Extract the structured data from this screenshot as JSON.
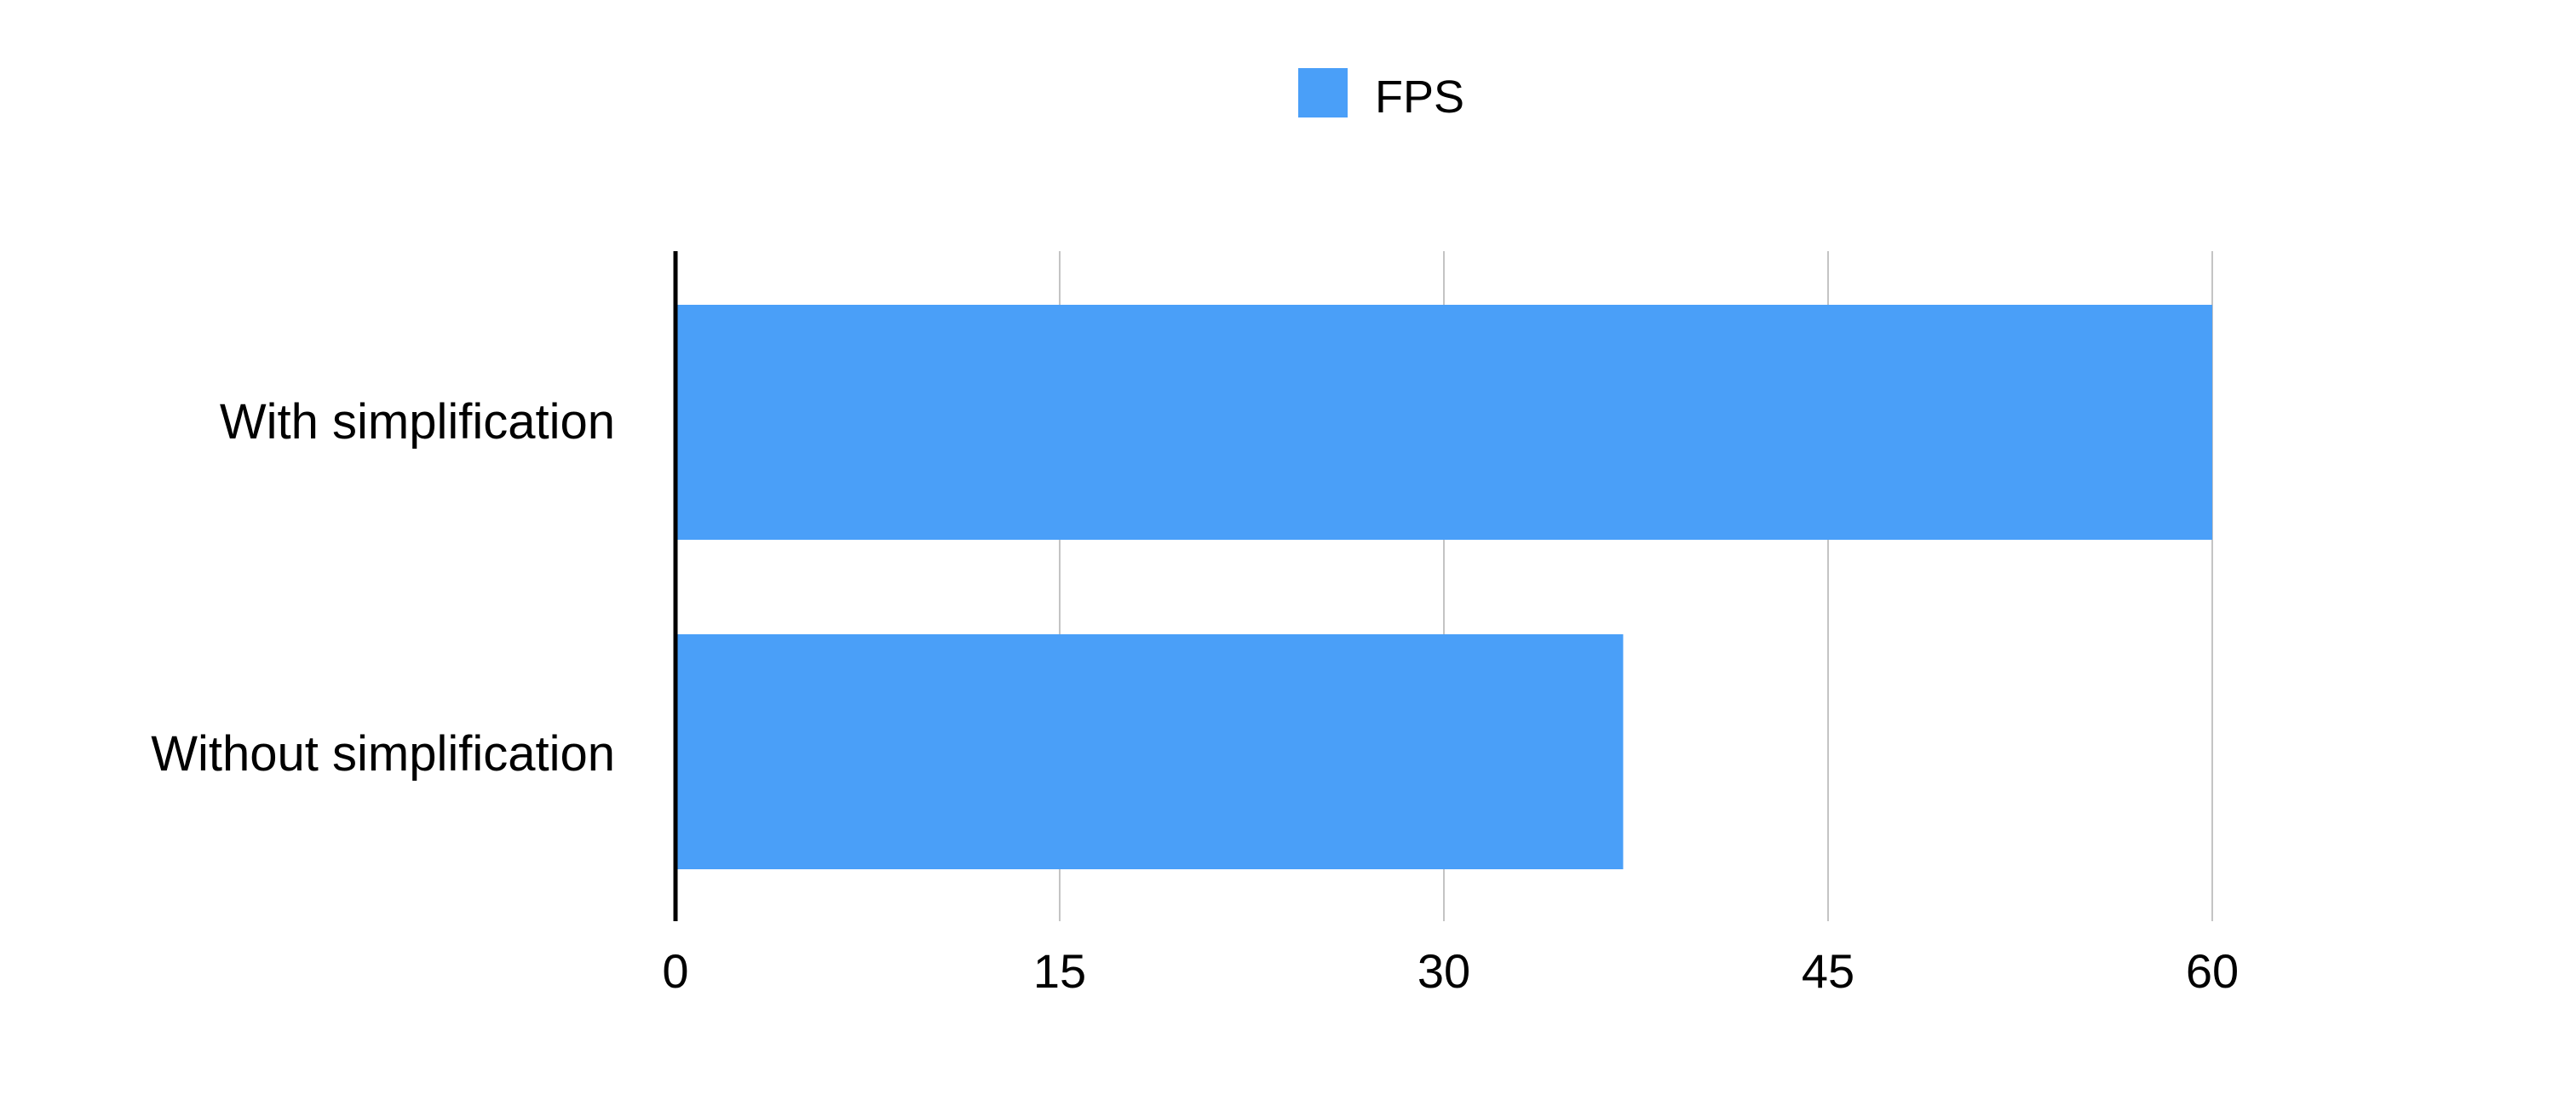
{
  "chart_data": {
    "type": "bar",
    "orientation": "horizontal",
    "categories": [
      "With simplification",
      "Without simplification"
    ],
    "series": [
      {
        "name": "FPS",
        "values": [
          60,
          37
        ],
        "color": "#4a9ff8"
      }
    ],
    "x_ticks": [
      0,
      15,
      30,
      45,
      60
    ],
    "xlim": [
      0,
      60
    ],
    "grid": true,
    "legend_position": "top-center"
  }
}
